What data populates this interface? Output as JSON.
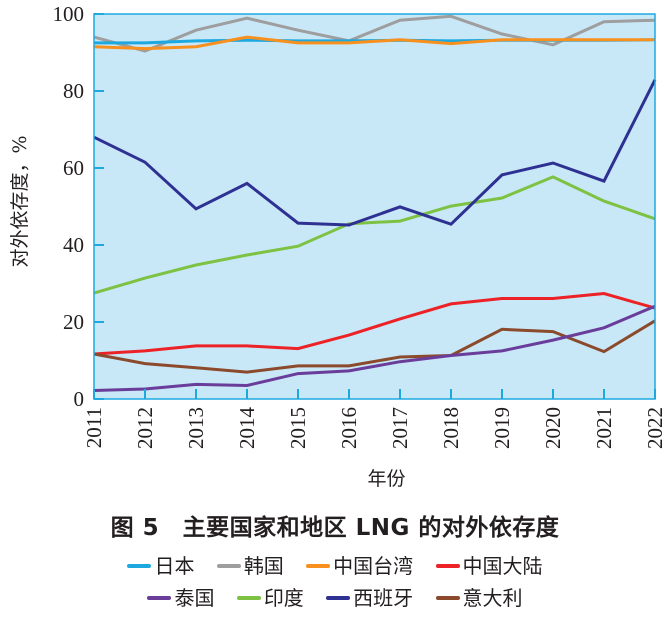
{
  "chart_data": {
    "type": "line",
    "title": "图 5　主要国家和地区 LNG 的对外依存度",
    "xlabel": "年份",
    "ylabel": "对外依存度，%",
    "x": [
      "2011",
      "2012",
      "2013",
      "2014",
      "2015",
      "2016",
      "2017",
      "2018",
      "2019",
      "2020",
      "2021",
      "2022"
    ],
    "ylim": [
      0,
      100
    ],
    "yticks": [
      "0",
      "20",
      "40",
      "60",
      "80",
      "100"
    ],
    "grid": false,
    "background_color": "#c8e8f8",
    "axis_color": "#1ea8e0",
    "legend_position": "bottom",
    "series": [
      {
        "name": "日本",
        "color": "#1ea8e0",
        "values": [
          92.5,
          92.5,
          93.0,
          93.2,
          93.0,
          93.0,
          93.2,
          93.0,
          93.2,
          93.2,
          93.2,
          93.3
        ]
      },
      {
        "name": "韩国",
        "color": "#9e9e9e",
        "values": [
          94.0,
          90.4,
          95.8,
          98.9,
          95.8,
          93.0,
          98.4,
          99.4,
          94.8,
          92.0,
          98.0,
          98.4
        ]
      },
      {
        "name": "中国台湾",
        "color": "#f7901e",
        "values": [
          91.5,
          91.0,
          91.5,
          94.0,
          92.5,
          92.5,
          93.3,
          92.3,
          93.3,
          93.3,
          93.3,
          93.3
        ]
      },
      {
        "name": "中国大陆",
        "color": "#ed2227",
        "values": [
          11.7,
          12.5,
          13.8,
          13.8,
          13.1,
          16.6,
          20.8,
          24.7,
          26.1,
          26.1,
          27.4,
          23.6
        ]
      },
      {
        "name": "泰国",
        "color": "#6a3d9a",
        "values": [
          2.2,
          2.6,
          3.8,
          3.5,
          6.6,
          7.3,
          9.7,
          11.3,
          12.5,
          15.3,
          18.5,
          24.1
        ]
      },
      {
        "name": "印度",
        "color": "#7dc242",
        "values": [
          27.5,
          31.4,
          34.8,
          37.4,
          39.7,
          45.5,
          46.2,
          50.1,
          52.2,
          57.7,
          51.4,
          46.8
        ]
      },
      {
        "name": "西班牙",
        "color": "#2e3192",
        "values": [
          68.0,
          61.5,
          49.4,
          56.0,
          45.7,
          45.2,
          49.9,
          45.4,
          58.2,
          61.3,
          56.6,
          82.9
        ]
      },
      {
        "name": "意大利",
        "color": "#8b4a2b",
        "values": [
          11.7,
          9.2,
          8.1,
          7.0,
          8.6,
          8.6,
          10.9,
          11.3,
          18.1,
          17.5,
          12.3,
          20.3
        ]
      }
    ]
  }
}
